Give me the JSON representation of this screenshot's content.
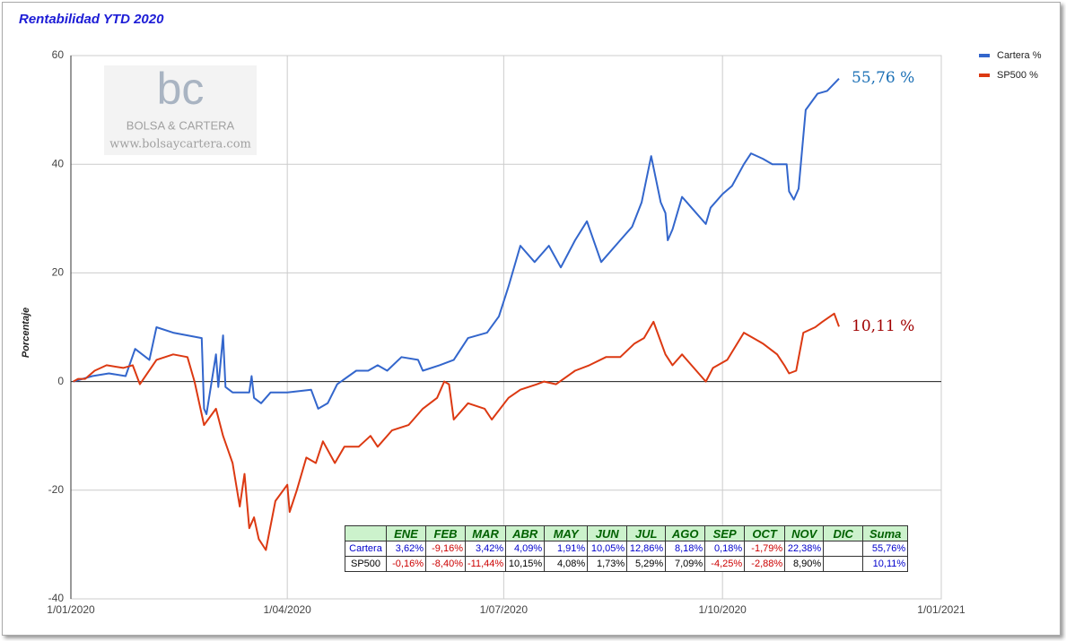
{
  "chart_data": {
    "type": "line",
    "title": "Rentabilidad YTD 2020",
    "ylabel": "Porcentaje",
    "watermark": [
      "bc",
      "BOLSA & CARTERA",
      "www.bolsaycartera.com"
    ],
    "xlim": [
      "2020-01-01",
      "2021-01-01"
    ],
    "xticks": [
      {
        "value": "2020-01-01",
        "label": "1/01/2020"
      },
      {
        "value": "2020-04-01",
        "label": "1/04/2020"
      },
      {
        "value": "2020-07-01",
        "label": "1/07/2020"
      },
      {
        "value": "2020-10-01",
        "label": "1/10/2020"
      },
      {
        "value": "2021-01-01",
        "label": "1/01/2021"
      }
    ],
    "ylim": [
      -40,
      60
    ],
    "yticks": [
      -40,
      -20,
      0,
      20,
      40,
      60
    ],
    "grid": true,
    "legend": "right",
    "series": [
      {
        "name": "Cartera %",
        "color": "#3366cc",
        "end_label": "55,76 %",
        "end_label_color": "#1a6fb5",
        "x": [
          "2020-01-02",
          "2020-01-10",
          "2020-01-17",
          "2020-01-24",
          "2020-01-28",
          "2020-02-03",
          "2020-02-06",
          "2020-02-13",
          "2020-02-25",
          "2020-02-26",
          "2020-02-27",
          "2020-03-02",
          "2020-03-03",
          "2020-03-05",
          "2020-03-06",
          "2020-03-09",
          "2020-03-16",
          "2020-03-17",
          "2020-03-18",
          "2020-03-21",
          "2020-03-25",
          "2020-04-01",
          "2020-04-11",
          "2020-04-14",
          "2020-04-18",
          "2020-04-22",
          "2020-04-30",
          "2020-05-05",
          "2020-05-09",
          "2020-05-13",
          "2020-05-19",
          "2020-05-26",
          "2020-05-28",
          "2020-06-04",
          "2020-06-10",
          "2020-06-16",
          "2020-06-24",
          "2020-06-29",
          "2020-07-03",
          "2020-07-08",
          "2020-07-14",
          "2020-07-20",
          "2020-07-25",
          "2020-07-31",
          "2020-08-05",
          "2020-08-11",
          "2020-08-19",
          "2020-08-24",
          "2020-08-28",
          "2020-09-01",
          "2020-09-05",
          "2020-09-07",
          "2020-09-08",
          "2020-09-10",
          "2020-09-14",
          "2020-09-18",
          "2020-09-24",
          "2020-09-26",
          "2020-10-01",
          "2020-10-05",
          "2020-10-10",
          "2020-10-13",
          "2020-10-18",
          "2020-10-22",
          "2020-10-28",
          "2020-10-29",
          "2020-10-31",
          "2020-11-02",
          "2020-11-05",
          "2020-11-10",
          "2020-11-14",
          "2020-11-19"
        ],
        "values": [
          0,
          1,
          1.5,
          1,
          6,
          4,
          10,
          9,
          8,
          -5,
          -6,
          5,
          -1,
          8.5,
          -1,
          -2,
          -2,
          1,
          -3,
          -4,
          -2,
          -2,
          -1.5,
          -5,
          -4,
          -0.5,
          2,
          2,
          3,
          2,
          4.5,
          4,
          2,
          3,
          4,
          8,
          9,
          12,
          17.5,
          25,
          22,
          25,
          21,
          26,
          29.5,
          22,
          26,
          28.5,
          33,
          41.5,
          33,
          31,
          26,
          28,
          34,
          32,
          29,
          32,
          34.5,
          36,
          40,
          42,
          41,
          40,
          40,
          35,
          33.5,
          35.5,
          50,
          53,
          53.5,
          55.76
        ]
      },
      {
        "name": "SP500 %",
        "color": "#dc3912",
        "end_label": "10,11 %",
        "end_label_color": "#a00000",
        "x": [
          "2020-01-02",
          "2020-01-04",
          "2020-01-07",
          "2020-01-11",
          "2020-01-16",
          "2020-01-23",
          "2020-01-27",
          "2020-01-30",
          "2020-02-06",
          "2020-02-13",
          "2020-02-19",
          "2020-02-22",
          "2020-02-26",
          "2020-03-02",
          "2020-03-05",
          "2020-03-09",
          "2020-03-12",
          "2020-03-14",
          "2020-03-16",
          "2020-03-18",
          "2020-03-20",
          "2020-03-23",
          "2020-03-27",
          "2020-04-01",
          "2020-04-02",
          "2020-04-05",
          "2020-04-09",
          "2020-04-13",
          "2020-04-16",
          "2020-04-21",
          "2020-04-25",
          "2020-05-01",
          "2020-05-06",
          "2020-05-09",
          "2020-05-15",
          "2020-05-22",
          "2020-05-28",
          "2020-06-03",
          "2020-06-06",
          "2020-06-08",
          "2020-06-10",
          "2020-06-16",
          "2020-06-23",
          "2020-06-26",
          "2020-07-03",
          "2020-07-08",
          "2020-07-15",
          "2020-07-18",
          "2020-07-23",
          "2020-07-31",
          "2020-08-06",
          "2020-08-13",
          "2020-08-19",
          "2020-08-25",
          "2020-08-29",
          "2020-09-02",
          "2020-09-07",
          "2020-09-10",
          "2020-09-14",
          "2020-09-20",
          "2020-09-24",
          "2020-09-27",
          "2020-10-03",
          "2020-10-10",
          "2020-10-14",
          "2020-10-18",
          "2020-10-24",
          "2020-10-27",
          "2020-10-29",
          "2020-11-01",
          "2020-11-04",
          "2020-11-09",
          "2020-11-12",
          "2020-11-17",
          "2020-11-19"
        ],
        "values": [
          0,
          0.5,
          0.5,
          2,
          3,
          2.5,
          3,
          -0.5,
          4,
          5,
          4.5,
          0,
          -8,
          -5,
          -10,
          -15,
          -23,
          -17,
          -27,
          -25,
          -29,
          -31,
          -22,
          -19,
          -24,
          -20,
          -14,
          -15,
          -11,
          -15,
          -12,
          -12,
          -10,
          -12,
          -9,
          -8,
          -5,
          -3,
          0,
          -0.5,
          -7,
          -4,
          -5,
          -7,
          -3,
          -1.5,
          -0.5,
          0,
          -0.5,
          2,
          3,
          4.5,
          4.5,
          7,
          8,
          11,
          5,
          3,
          5,
          2,
          0,
          2.5,
          4,
          9,
          8,
          7,
          5,
          3,
          1.5,
          2,
          9,
          10,
          11,
          12.5,
          10.11
        ]
      }
    ]
  },
  "table": {
    "header": [
      "ENE",
      "FEB",
      "MAR",
      "ABR",
      "MAY",
      "JUN",
      "JUL",
      "AGO",
      "SEP",
      "OCT",
      "NOV",
      "DIC",
      "Suma"
    ],
    "rows": [
      {
        "name": "Cartera",
        "cells": [
          "3,62%",
          "-9,16%",
          "3,42%",
          "4,09%",
          "1,91%",
          "10,05%",
          "12,86%",
          "8,18%",
          "0,18%",
          "-1,79%",
          "22,38%",
          null,
          "55,76%"
        ]
      },
      {
        "name": "SP500",
        "cells": [
          "-0,16%",
          "-8,40%",
          "-11,44%",
          "10,15%",
          "4,08%",
          "1,73%",
          "5,29%",
          "7,09%",
          "-4,25%",
          "-2,88%",
          "8,90%",
          null,
          "10,11%"
        ]
      }
    ]
  }
}
